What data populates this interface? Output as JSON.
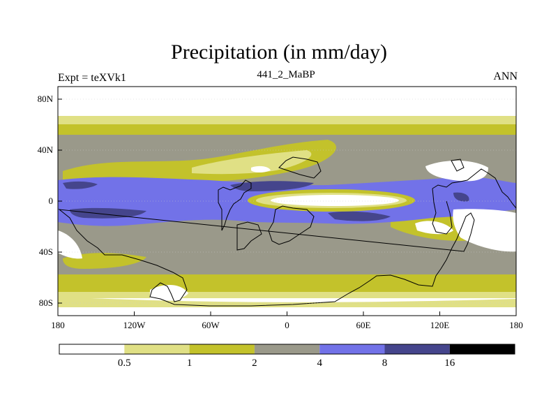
{
  "header": {
    "title": "Precipitation (in mm/day)",
    "experiment_label": "Expt = teXVk1",
    "period_label": "441_2_MaBP",
    "season_label": "ANN"
  },
  "map": {
    "projection": "cylindrical equidistant",
    "lon_range": [
      -180,
      180
    ],
    "lat_range": [
      -90,
      90
    ],
    "lat_ticks": [
      {
        "value": 80,
        "label": "80N"
      },
      {
        "value": 40,
        "label": "40N"
      },
      {
        "value": 0,
        "label": "0"
      },
      {
        "value": -40,
        "label": "40S"
      },
      {
        "value": -80,
        "label": "80S"
      }
    ],
    "lon_ticks": [
      {
        "value": -180,
        "label": "180"
      },
      {
        "value": -120,
        "label": "120W"
      },
      {
        "value": -60,
        "label": "60W"
      },
      {
        "value": 0,
        "label": "0"
      },
      {
        "value": 60,
        "label": "60E"
      },
      {
        "value": 120,
        "label": "120E"
      },
      {
        "value": 180,
        "label": "180"
      }
    ]
  },
  "colorbar": {
    "levels": [
      "0.5",
      "1",
      "2",
      "4",
      "8",
      "16"
    ],
    "colors": [
      "#ffffff",
      "#e0e085",
      "#c3c22b",
      "#9a998a",
      "#7272e8",
      "#45458c",
      "#000000"
    ]
  }
}
